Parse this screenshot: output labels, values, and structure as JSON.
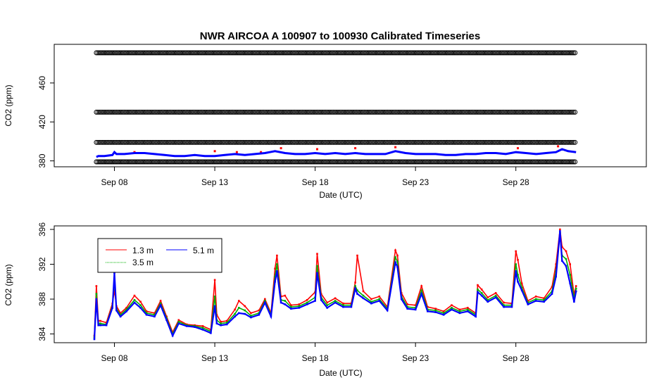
{
  "chart_data": [
    {
      "type": "scatter",
      "title": "NWR   AIRCOA  A   100907  to  100930   Calibrated Timeseries",
      "xlabel": "Date (UTC)",
      "ylabel": "CO2 (ppm)",
      "xlim": [
        5.0,
        34.5
      ],
      "ylim": [
        377,
        497
      ],
      "xticks": [
        {
          "value": 8,
          "label": "Sep 08"
        },
        {
          "value": 13,
          "label": "Sep 13"
        },
        {
          "value": 18,
          "label": "Sep 18"
        },
        {
          "value": 23,
          "label": "Sep 23"
        },
        {
          "value": 28,
          "label": "Sep 28"
        }
      ],
      "yticks": [
        {
          "value": 380,
          "label": "380"
        },
        {
          "value": 420,
          "label": "420"
        },
        {
          "value": 460,
          "label": "460"
        }
      ],
      "standards": [
        {
          "name": "standard-490",
          "value": 491,
          "x_start": 7.1,
          "x_end": 31.0,
          "color": "#000000"
        },
        {
          "name": "standard-430",
          "value": 430,
          "x_start": 7.1,
          "x_end": 31.0,
          "color": "#000000"
        },
        {
          "name": "standard-400",
          "value": 399,
          "x_start": 7.1,
          "x_end": 31.0,
          "color": "#000000"
        },
        {
          "name": "standard-380",
          "value": 379,
          "x_start": 7.1,
          "x_end": 31.0,
          "color": "#000000"
        }
      ],
      "series": [
        {
          "name": "1.3 m",
          "color": "#ff0000",
          "x": [
            9.0,
            13.0,
            14.1,
            15.3,
            16.3,
            18.1,
            20.0,
            22.0,
            28.1,
            30.1
          ],
          "y": [
            389,
            390,
            389,
            389,
            393,
            392,
            393,
            394,
            393,
            395
          ]
        },
        {
          "name": "5.1 m",
          "color": "#0000ff",
          "x": [
            7.1,
            7.2,
            7.5,
            7.9,
            8.0,
            8.1,
            8.5,
            9.0,
            9.5,
            10.0,
            10.5,
            11.0,
            11.5,
            12.0,
            12.5,
            13.0,
            13.5,
            14.0,
            14.5,
            15.0,
            15.5,
            16.0,
            16.5,
            17.0,
            17.5,
            18.0,
            18.5,
            19.0,
            19.5,
            20.0,
            20.5,
            21.0,
            21.5,
            22.0,
            22.5,
            23.0,
            23.5,
            24.0,
            24.5,
            25.0,
            25.5,
            26.0,
            26.5,
            27.0,
            27.5,
            28.0,
            28.5,
            29.0,
            29.5,
            30.0,
            30.3,
            30.6,
            31.0
          ],
          "y": [
            384,
            385,
            385,
            386,
            389,
            387,
            387,
            388,
            388,
            387,
            386,
            385,
            385,
            386,
            385,
            385,
            386,
            387,
            386,
            387,
            388,
            390,
            388,
            387,
            387,
            388,
            387,
            388,
            387,
            388,
            387,
            387,
            387,
            390,
            388,
            387,
            387,
            387,
            386,
            386,
            387,
            387,
            388,
            388,
            387,
            389,
            388,
            387,
            388,
            389,
            392,
            390,
            389
          ]
        }
      ]
    },
    {
      "type": "line",
      "title": "",
      "xlabel": "Date (UTC)",
      "ylabel": "CO2 (ppm)",
      "xlim": [
        5.0,
        34.5
      ],
      "ylim": [
        382.8,
        396.2
      ],
      "xticks": [
        {
          "value": 8,
          "label": "Sep 08"
        },
        {
          "value": 13,
          "label": "Sep 13"
        },
        {
          "value": 18,
          "label": "Sep 18"
        },
        {
          "value": 23,
          "label": "Sep 23"
        },
        {
          "value": 28,
          "label": "Sep 28"
        }
      ],
      "yticks": [
        {
          "value": 384,
          "label": "384"
        },
        {
          "value": 388,
          "label": "388"
        },
        {
          "value": 392,
          "label": "392"
        },
        {
          "value": 396,
          "label": "396"
        }
      ],
      "legend": {
        "position": "top-left"
      },
      "series": [
        {
          "name": "1.3 m",
          "color": "#ff0000",
          "x": [
            7.0,
            7.1,
            7.2,
            7.3,
            7.6,
            7.9,
            8.0,
            8.1,
            8.3,
            8.6,
            9.0,
            9.3,
            9.6,
            10.0,
            10.3,
            10.6,
            10.9,
            11.2,
            11.6,
            12.0,
            12.4,
            12.8,
            13.0,
            13.1,
            13.3,
            13.6,
            14.0,
            14.2,
            14.5,
            14.8,
            15.2,
            15.5,
            15.8,
            16.0,
            16.1,
            16.3,
            16.5,
            16.8,
            17.2,
            17.6,
            18.0,
            18.1,
            18.3,
            18.6,
            19.0,
            19.4,
            19.8,
            20.0,
            20.1,
            20.4,
            20.8,
            21.2,
            21.6,
            22.0,
            22.1,
            22.3,
            22.6,
            23.0,
            23.3,
            23.6,
            24.0,
            24.4,
            24.8,
            25.2,
            25.6,
            26.0,
            26.1,
            26.3,
            26.6,
            27.0,
            27.4,
            27.8,
            28.0,
            28.1,
            28.3,
            28.6,
            29.0,
            29.4,
            29.8,
            30.0,
            30.2,
            30.3,
            30.5,
            30.7,
            30.9,
            31.0
          ],
          "y": [
            383.8,
            389.5,
            385.5,
            385.5,
            385.3,
            387.5,
            389.0,
            387.2,
            386.4,
            387.0,
            388.4,
            387.7,
            386.6,
            386.4,
            387.8,
            386.0,
            384.2,
            385.6,
            385.1,
            385.0,
            384.9,
            384.5,
            390.2,
            386.2,
            385.4,
            385.5,
            386.8,
            387.8,
            387.2,
            386.4,
            386.7,
            388.0,
            386.4,
            391.5,
            393.0,
            388.3,
            388.4,
            387.3,
            387.4,
            387.9,
            388.8,
            393.2,
            388.6,
            387.6,
            388.1,
            387.5,
            387.5,
            389.9,
            393.0,
            388.9,
            388.0,
            388.3,
            387.1,
            393.6,
            393.0,
            388.7,
            387.4,
            387.3,
            389.5,
            387.1,
            386.9,
            386.6,
            387.3,
            386.8,
            387.0,
            386.4,
            389.6,
            389.1,
            388.2,
            388.7,
            387.6,
            387.5,
            393.5,
            392.5,
            389.8,
            387.8,
            388.3,
            388.1,
            389.4,
            392.0,
            396.0,
            394.0,
            393.5,
            392.0,
            388.5,
            389.5
          ]
        },
        {
          "name": "3.5 m",
          "color": "#00b000",
          "x": [
            7.0,
            7.1,
            7.2,
            7.3,
            7.6,
            7.9,
            8.0,
            8.1,
            8.3,
            8.6,
            9.0,
            9.3,
            9.6,
            10.0,
            10.3,
            10.6,
            10.9,
            11.2,
            11.6,
            12.0,
            12.4,
            12.8,
            13.0,
            13.1,
            13.3,
            13.6,
            14.0,
            14.2,
            14.5,
            14.8,
            15.2,
            15.5,
            15.8,
            16.0,
            16.1,
            16.3,
            16.5,
            16.8,
            17.2,
            17.6,
            18.0,
            18.1,
            18.3,
            18.6,
            19.0,
            19.4,
            19.8,
            20.0,
            20.1,
            20.4,
            20.8,
            21.2,
            21.6,
            22.0,
            22.1,
            22.3,
            22.6,
            23.0,
            23.3,
            23.6,
            24.0,
            24.4,
            24.8,
            25.2,
            25.6,
            26.0,
            26.1,
            26.3,
            26.6,
            27.0,
            27.4,
            27.8,
            28.0,
            28.1,
            28.3,
            28.6,
            29.0,
            29.4,
            29.8,
            30.0,
            30.2,
            30.3,
            30.5,
            30.7,
            30.9,
            31.0
          ],
          "y": [
            383.6,
            388.6,
            385.2,
            385.2,
            385.1,
            387.2,
            390.2,
            386.9,
            386.2,
            386.8,
            387.9,
            387.3,
            386.4,
            386.2,
            387.5,
            385.8,
            384.0,
            385.4,
            385.0,
            384.9,
            384.7,
            384.3,
            388.3,
            385.6,
            385.2,
            385.3,
            386.3,
            387.0,
            386.7,
            386.1,
            386.4,
            387.8,
            386.2,
            390.6,
            392.0,
            387.9,
            387.8,
            387.1,
            387.2,
            387.6,
            388.2,
            391.8,
            388.2,
            387.3,
            387.8,
            387.3,
            387.3,
            389.5,
            389.0,
            388.4,
            387.7,
            388.0,
            386.9,
            392.8,
            392.3,
            388.3,
            387.1,
            387.0,
            389.0,
            386.8,
            386.7,
            386.4,
            387.0,
            386.6,
            386.8,
            386.2,
            389.1,
            388.7,
            387.9,
            388.4,
            387.3,
            387.3,
            392.0,
            390.8,
            389.3,
            387.6,
            388.0,
            387.9,
            388.9,
            391.2,
            395.6,
            393.0,
            392.6,
            390.8,
            388.1,
            389.2
          ]
        },
        {
          "name": "5.1 m",
          "color": "#0000ff",
          "x": [
            7.0,
            7.1,
            7.2,
            7.3,
            7.6,
            7.9,
            8.0,
            8.1,
            8.3,
            8.6,
            9.0,
            9.3,
            9.6,
            10.0,
            10.3,
            10.6,
            10.9,
            11.2,
            11.6,
            12.0,
            12.4,
            12.8,
            13.0,
            13.1,
            13.3,
            13.6,
            14.0,
            14.2,
            14.5,
            14.8,
            15.2,
            15.5,
            15.8,
            16.0,
            16.1,
            16.3,
            16.5,
            16.8,
            17.2,
            17.6,
            18.0,
            18.1,
            18.3,
            18.6,
            19.0,
            19.4,
            19.8,
            20.0,
            20.1,
            20.4,
            20.8,
            21.2,
            21.6,
            22.0,
            22.1,
            22.3,
            22.6,
            23.0,
            23.3,
            23.6,
            24.0,
            24.4,
            24.8,
            25.2,
            25.6,
            26.0,
            26.1,
            26.3,
            26.6,
            27.0,
            27.4,
            27.8,
            28.0,
            28.1,
            28.3,
            28.6,
            29.0,
            29.4,
            29.8,
            30.0,
            30.2,
            30.3,
            30.5,
            30.7,
            30.9,
            31.0
          ],
          "y": [
            383.4,
            388.0,
            385.0,
            385.0,
            385.0,
            387.0,
            391.0,
            386.7,
            386.0,
            386.6,
            387.6,
            387.0,
            386.2,
            386.0,
            387.3,
            385.6,
            383.8,
            385.2,
            384.9,
            384.8,
            384.5,
            384.1,
            387.2,
            385.2,
            385.0,
            385.1,
            386.0,
            386.4,
            386.3,
            385.9,
            386.2,
            387.6,
            386.0,
            390.0,
            391.2,
            387.6,
            387.4,
            386.9,
            387.0,
            387.4,
            387.8,
            391.0,
            387.9,
            387.0,
            387.6,
            387.1,
            387.1,
            389.2,
            388.6,
            388.1,
            387.5,
            387.8,
            386.7,
            392.2,
            391.7,
            388.0,
            386.9,
            386.8,
            388.6,
            386.6,
            386.5,
            386.2,
            386.8,
            386.4,
            386.6,
            386.0,
            388.8,
            388.4,
            387.7,
            388.2,
            387.1,
            387.1,
            391.2,
            390.0,
            389.0,
            387.4,
            387.8,
            387.7,
            388.6,
            390.6,
            395.8,
            392.4,
            391.8,
            389.8,
            387.7,
            388.9
          ]
        }
      ]
    }
  ]
}
